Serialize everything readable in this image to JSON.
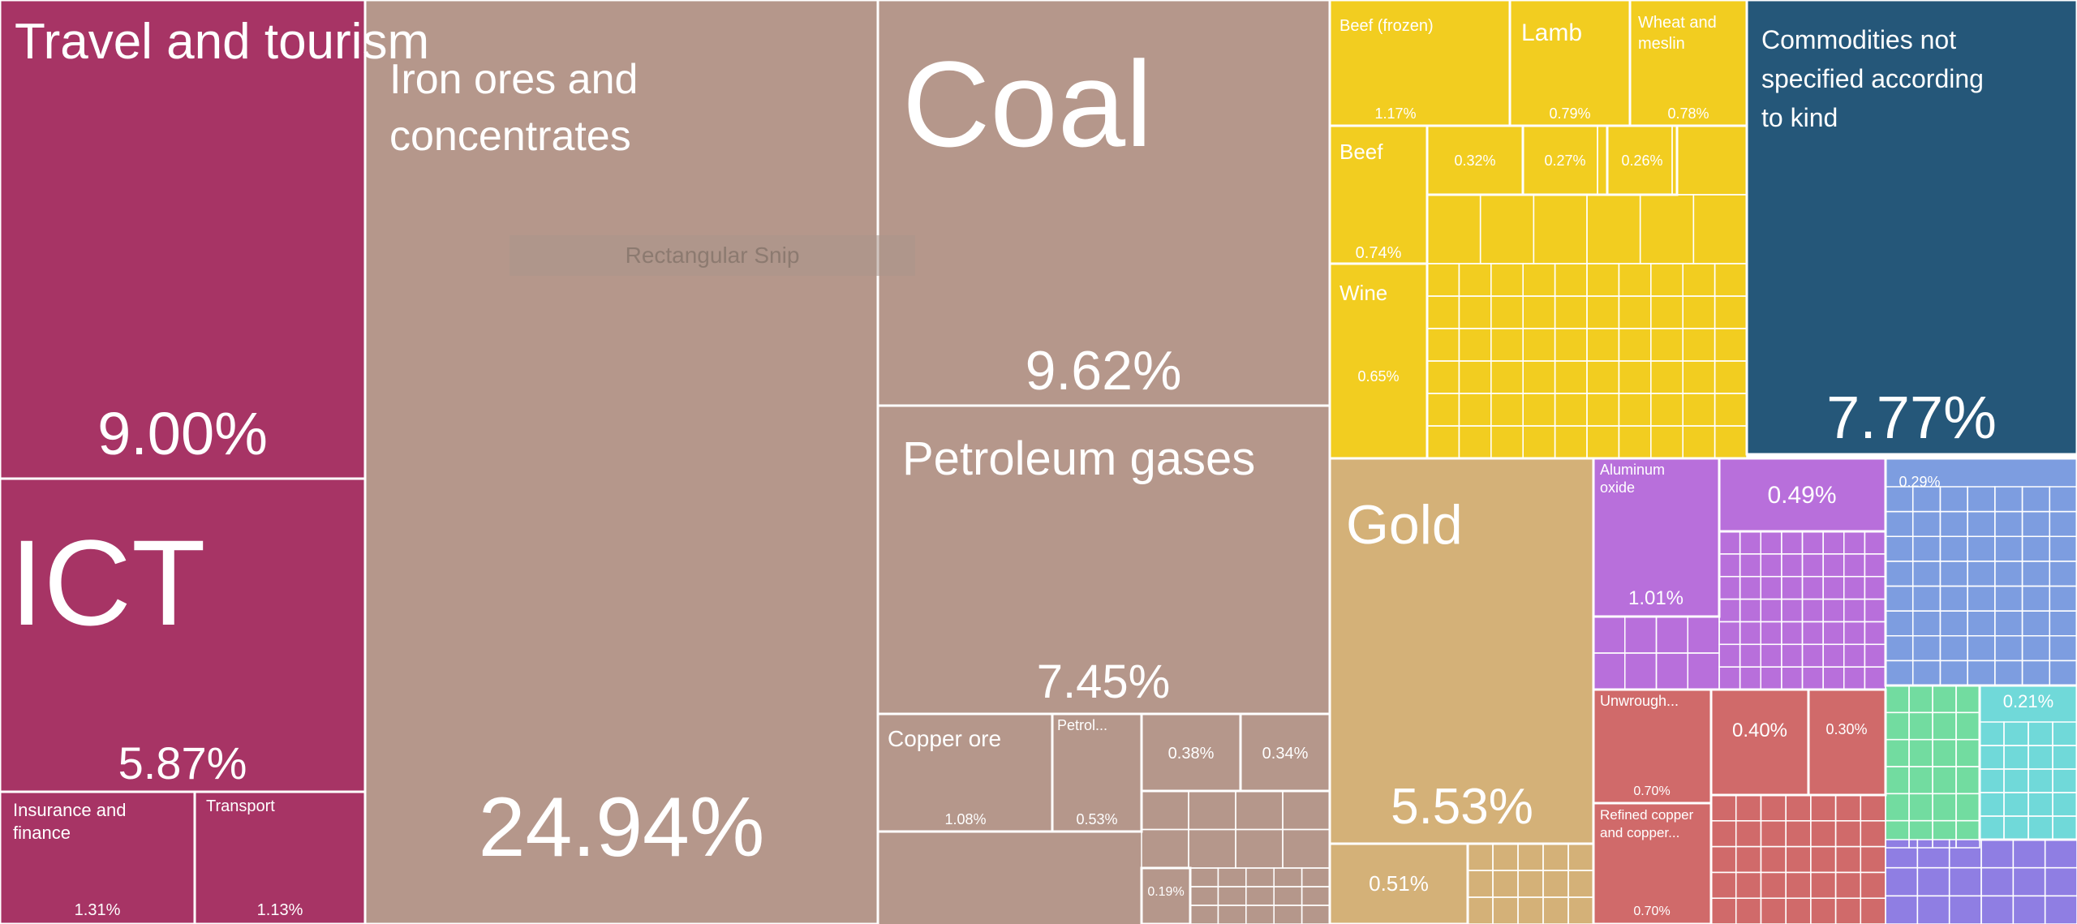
{
  "chart_data": {
    "type": "treemap",
    "title": "",
    "tooltip": "Rectangular Snip",
    "colors": {
      "services": "#a73465",
      "mineral": "#b5978b",
      "food": "#f2cd20",
      "other": "#255779",
      "gold": "#d4b178",
      "chemicals": "#b86fdb",
      "metals": "#d06a6a",
      "machinery": "#7d9de0",
      "plastics": "#72dca0",
      "instruments": "#70d9d9",
      "transport": "#8f7ee3"
    },
    "tiles": [
      {
        "name": "Travel and tourism",
        "value": "9.00%",
        "group": "services"
      },
      {
        "name": "ICT",
        "value": "5.87%",
        "group": "services"
      },
      {
        "name": "Insurance and finance",
        "value": "1.31%",
        "group": "services"
      },
      {
        "name": "Transport",
        "value": "1.13%",
        "group": "services"
      },
      {
        "name": "Iron ores and concentrates",
        "value": "24.94%",
        "group": "mineral"
      },
      {
        "name": "Coal",
        "value": "9.62%",
        "group": "mineral"
      },
      {
        "name": "Petroleum gases",
        "value": "7.45%",
        "group": "mineral"
      },
      {
        "name": "Copper ore",
        "value": "1.08%",
        "group": "mineral"
      },
      {
        "name": "Petrol...",
        "value": "0.53%",
        "group": "mineral"
      },
      {
        "name": "",
        "value": "0.38%",
        "group": "mineral"
      },
      {
        "name": "",
        "value": "0.34%",
        "group": "mineral"
      },
      {
        "name": "",
        "value": "0.19%",
        "group": "mineral"
      },
      {
        "name": "Beef (frozen)",
        "value": "1.17%",
        "group": "food"
      },
      {
        "name": "Lamb",
        "value": "0.79%",
        "group": "food"
      },
      {
        "name": "Wheat and meslin",
        "value": "0.78%",
        "group": "food"
      },
      {
        "name": "Beef",
        "value": "0.74%",
        "group": "food"
      },
      {
        "name": "",
        "value": "0.32%",
        "group": "food"
      },
      {
        "name": "",
        "value": "0.27%",
        "group": "food"
      },
      {
        "name": "",
        "value": "0.26%",
        "group": "food"
      },
      {
        "name": "Wine",
        "value": "0.65%",
        "group": "food"
      },
      {
        "name": "Commodities not specified according to kind",
        "value": "7.77%",
        "group": "other"
      },
      {
        "name": "Gold",
        "value": "5.53%",
        "group": "gold"
      },
      {
        "name": "",
        "value": "0.51%",
        "group": "gold"
      },
      {
        "name": "Aluminum oxide",
        "value": "1.01%",
        "group": "chemicals"
      },
      {
        "name": "",
        "value": "0.49%",
        "group": "chemicals"
      },
      {
        "name": "Unwrough...",
        "value": "0.70%",
        "group": "metals"
      },
      {
        "name": "",
        "value": "0.40%",
        "group": "metals"
      },
      {
        "name": "",
        "value": "0.30%",
        "group": "metals"
      },
      {
        "name": "Refined copper and copper...",
        "value": "0.70%",
        "group": "metals"
      },
      {
        "name": "",
        "value": "0.29%",
        "group": "machinery"
      },
      {
        "name": "",
        "value": "0.21%",
        "group": "instruments"
      }
    ]
  }
}
